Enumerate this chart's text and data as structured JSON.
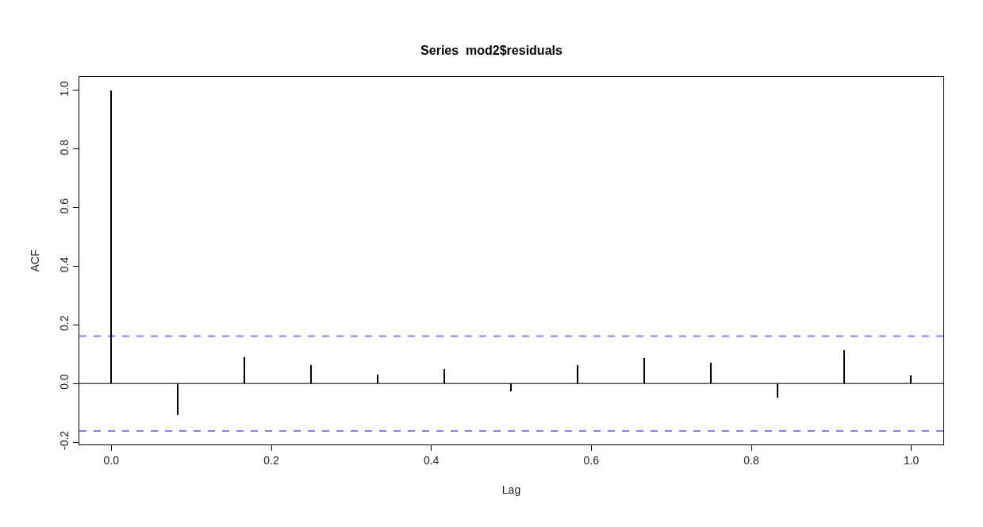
{
  "chart_data": {
    "type": "bar",
    "title": "Series  mod2$residuals",
    "xlabel": "Lag",
    "ylabel": "ACF",
    "x": [
      0,
      0.0833,
      0.1667,
      0.25,
      0.3333,
      0.4167,
      0.5,
      0.5833,
      0.6667,
      0.75,
      0.8333,
      0.9167,
      1
    ],
    "values": [
      1,
      -0.108,
      0.091,
      0.062,
      0.03,
      0.05,
      -0.027,
      0.062,
      0.088,
      0.072,
      -0.048,
      0.114,
      0.028
    ],
    "color": "#000000",
    "xlim": [
      -0.04,
      1.04
    ],
    "xticks": [
      {
        "value": 0,
        "label": "0.0"
      },
      {
        "value": 0.2,
        "label": "0.2"
      },
      {
        "value": 0.4,
        "label": "0.4"
      },
      {
        "value": 0.6,
        "label": "0.6"
      },
      {
        "value": 0.8,
        "label": "0.8"
      },
      {
        "value": 1,
        "label": "1.0"
      }
    ],
    "ylim": [
      -0.208,
      1.046
    ],
    "yticks": [
      {
        "value": -0.2,
        "label": "-0.2"
      },
      {
        "value": 0,
        "label": "0.0"
      },
      {
        "value": 0.2,
        "label": "0.2"
      },
      {
        "value": 0.4,
        "label": "0.4"
      },
      {
        "value": 0.6,
        "label": "0.6"
      },
      {
        "value": 0.8,
        "label": "0.8"
      },
      {
        "value": 1,
        "label": "1.0"
      }
    ],
    "ref_lines": [
      {
        "axis": "y",
        "value": 0,
        "color": "#000000",
        "line_style": "solid"
      },
      {
        "axis": "y",
        "value": 0.162,
        "color": "#8080ff",
        "line_style": "dashed"
      },
      {
        "axis": "y",
        "value": -0.162,
        "color": "#8080ff",
        "line_style": "dashed"
      }
    ],
    "marker": "none"
  }
}
